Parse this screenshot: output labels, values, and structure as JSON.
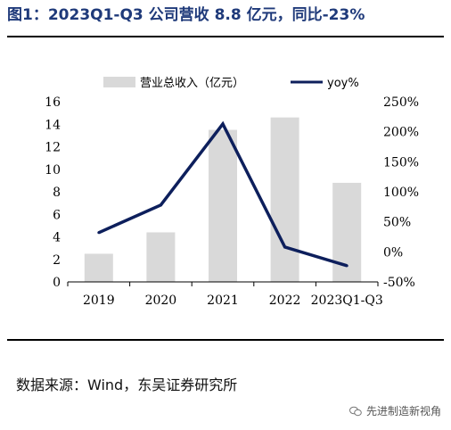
{
  "header": {
    "title": "图1：2023Q1-Q3 公司营收 8.8 亿元，同比-23%"
  },
  "chart_data": {
    "type": "bar",
    "categories": [
      "2019",
      "2020",
      "2021",
      "2022",
      "2023Q1-Q3"
    ],
    "series": [
      {
        "name": "营业总收入（亿元）",
        "type": "bar",
        "axis": "left",
        "color": "#d9d9d9",
        "values": [
          2.5,
          4.4,
          13.5,
          14.6,
          8.8
        ]
      },
      {
        "name": "yoy%",
        "type": "line",
        "axis": "right",
        "color": "#0d1f5c",
        "values": [
          32,
          78,
          213,
          8,
          -23
        ]
      }
    ],
    "y_left": {
      "range": [
        0,
        16
      ],
      "ticks": [
        "0",
        "2",
        "4",
        "6",
        "8",
        "10",
        "12",
        "14",
        "16"
      ]
    },
    "y_right": {
      "range": [
        -50,
        250
      ],
      "ticks": [
        "-50%",
        "0%",
        "50%",
        "100%",
        "150%",
        "200%",
        "250%"
      ]
    },
    "legend_position": "top",
    "grid": false
  },
  "footer": {
    "source": "数据来源：Wind，东吴证券研究所",
    "watermark": "先进制造新视角"
  }
}
